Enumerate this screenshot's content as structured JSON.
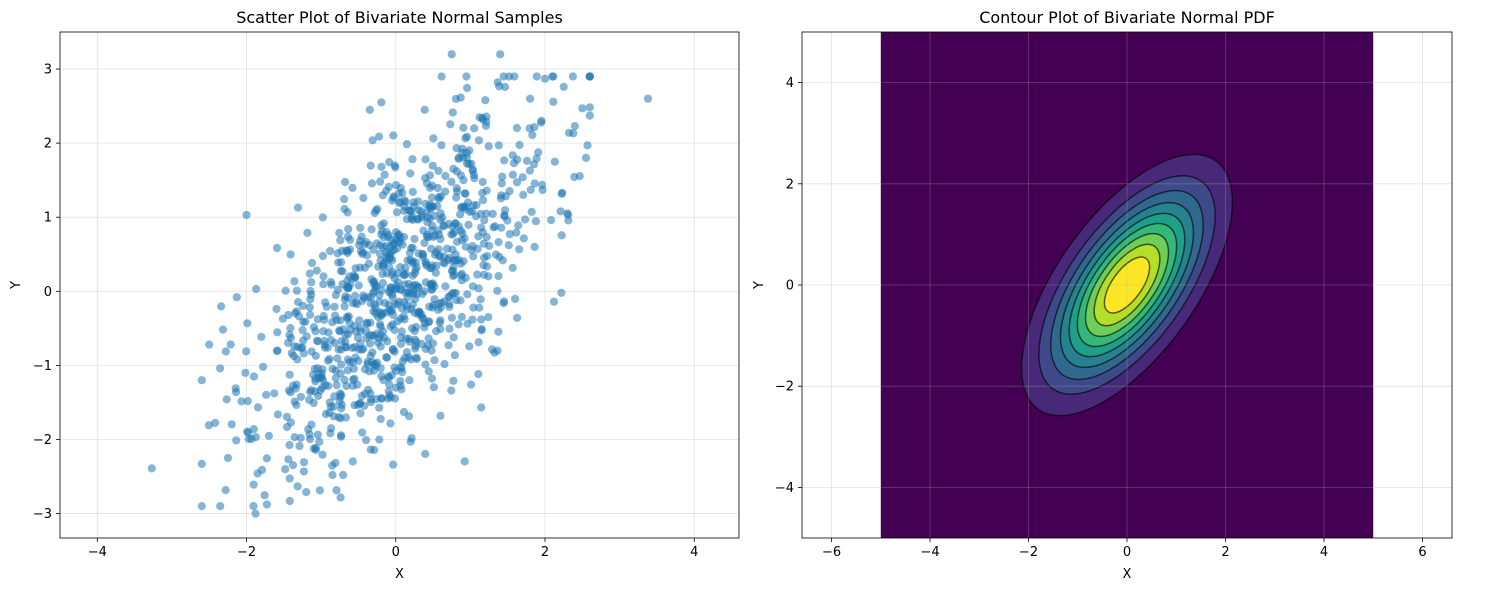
{
  "chart_data": [
    {
      "type": "scatter",
      "title": "Scatter Plot of Bivariate Normal Samples",
      "xlabel": "X",
      "ylabel": "Y",
      "xlim": [
        -4.5,
        4.6
      ],
      "ylim": [
        -3.33,
        3.5
      ],
      "xticks": [
        -4,
        -2,
        0,
        2,
        4
      ],
      "yticks": [
        -3,
        -2,
        -1,
        0,
        1,
        2,
        3
      ],
      "xtick_labels": [
        "−4",
        "−2",
        "0",
        "2",
        "4"
      ],
      "ytick_labels": [
        "−3",
        "−2",
        "−1",
        "0",
        "1",
        "2",
        "3"
      ],
      "grid": true,
      "point_color": "#1f77b4",
      "point_alpha": 0.55,
      "n_points": 1000,
      "seed": 42,
      "mean": [
        0,
        0
      ],
      "cov": [
        [
          1,
          0.8
        ],
        [
          0.8,
          1.5
        ]
      ],
      "points": [
        [
          0.75,
          3.2
        ],
        [
          1.4,
          3.2
        ],
        [
          3.38,
          2.6
        ],
        [
          2.0,
          2.87
        ],
        [
          2.25,
          2.76
        ],
        [
          2.5,
          2.47
        ],
        [
          2.57,
          1.97
        ],
        [
          2.55,
          1.8
        ],
        [
          2.4,
          2.23
        ],
        [
          -3.27,
          -2.39
        ],
        [
          -1.88,
          -3.0
        ],
        [
          -1.42,
          -2.83
        ],
        [
          -1.2,
          -2.71
        ],
        [
          -2.0,
          1.03
        ],
        [
          -2.5,
          -0.72
        ],
        [
          -2.13,
          -0.08
        ],
        [
          0.2,
          -2.03
        ],
        [
          0.6,
          -1.68
        ],
        [
          2.22,
          -0.02
        ],
        [
          2.12,
          -0.14
        ],
        [
          -2.6,
          -1.2
        ],
        [
          1.2,
          2.58
        ],
        [
          1.8,
          2.6
        ],
        [
          2.3,
          1.05
        ],
        [
          -2.25,
          -2.25
        ],
        [
          -1.9,
          -1.15
        ]
      ]
    },
    {
      "type": "contour",
      "title": "Contour Plot of Bivariate Normal PDF",
      "xlabel": "X",
      "ylabel": "Y",
      "xlim": [
        -6.6,
        6.6
      ],
      "ylim": [
        -5,
        5
      ],
      "data_extent": [
        -5,
        5,
        -5,
        5
      ],
      "xticks": [
        -6,
        -4,
        -2,
        0,
        2,
        4,
        6
      ],
      "yticks": [
        -4,
        -2,
        0,
        2,
        4
      ],
      "xtick_labels": [
        "−6",
        "−4",
        "−2",
        "0",
        "2",
        "4",
        "6"
      ],
      "ytick_labels": [
        "−4",
        "−2",
        "0",
        "2",
        "4"
      ],
      "grid": true,
      "colormap": "viridis",
      "background_color": "#440154",
      "contour_line_color": "#000000",
      "mean": [
        0,
        0
      ],
      "cov": [
        [
          1,
          0.8
        ],
        [
          0.8,
          1.5
        ]
      ],
      "filled_levels": 10,
      "line_levels": 10
    }
  ]
}
